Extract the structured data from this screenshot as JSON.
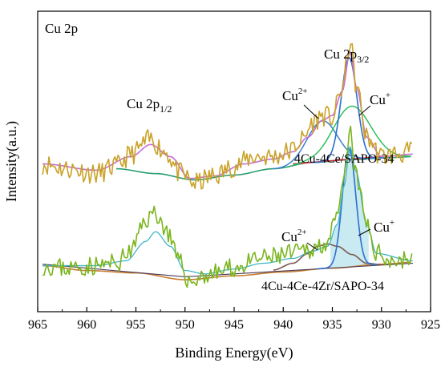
{
  "chart_data": {
    "type": "line",
    "panel_label": "Cu 2p",
    "xlabel": "Binding Energy(eV)",
    "ylabel": "Intensity(a.u.)",
    "xlim": [
      965,
      925
    ],
    "x_reversed": true,
    "x_ticks": [
      965,
      960,
      955,
      950,
      945,
      940,
      935,
      930,
      925
    ],
    "y_ticks_shown": false,
    "colors": {
      "raw_top": "#c9a227",
      "raw_bottom": "#7ab51d",
      "envelope": "#c86dd7",
      "cu2p32_peak": "#2c6fcd",
      "cu_plus_peak": "#2fbf5f",
      "cu2plus_peak": "#3a7fd0",
      "background": "#d7263d",
      "baseline": "#c77c2e",
      "satellite_fill": "#9ed8e8",
      "bottom_cu2plus": "#7a5a50"
    },
    "annotations": {
      "cu2p32": "Cu 2p3/2",
      "cu2p32_main": "Cu 2p",
      "cu2p32_sub": "3/2",
      "cu2p12_main": "Cu 2p",
      "cu2p12_sub": "1/2",
      "cu2plus_main": "Cu",
      "cu2plus_sup": "2+",
      "cuplus_main": "Cu",
      "cuplus_sup": "+"
    },
    "series": [
      {
        "name": "4Cu-4Ce/SAPO-34",
        "noise_seed": 11,
        "noise_amp": 0.22,
        "raw_points": [
          [
            964.5,
            3.05
          ],
          [
            962.0,
            2.95
          ],
          [
            959.0,
            2.85
          ],
          [
            957.0,
            3.0
          ],
          [
            955.5,
            3.25
          ],
          [
            953.5,
            3.55
          ],
          [
            952.0,
            3.3
          ],
          [
            950.5,
            2.85
          ],
          [
            949.0,
            2.65
          ],
          [
            947.0,
            2.8
          ],
          [
            945.0,
            3.0
          ],
          [
            943.0,
            3.2
          ],
          [
            941.0,
            3.2
          ],
          [
            939.5,
            3.3
          ],
          [
            938.0,
            3.55
          ],
          [
            937.0,
            3.9
          ],
          [
            936.0,
            4.05
          ],
          [
            935.0,
            4.0
          ],
          [
            934.0,
            4.6
          ],
          [
            933.2,
            5.55
          ],
          [
            932.5,
            4.6
          ],
          [
            931.5,
            3.6
          ],
          [
            930.0,
            3.2
          ],
          [
            928.5,
            3.25
          ],
          [
            926.8,
            3.3
          ]
        ],
        "envelope_points": [
          [
            964.5,
            3.05
          ],
          [
            959.0,
            2.92
          ],
          [
            955.5,
            3.2
          ],
          [
            953.5,
            3.45
          ],
          [
            951.5,
            3.2
          ],
          [
            949.5,
            2.75
          ],
          [
            947.0,
            2.8
          ],
          [
            944.0,
            3.05
          ],
          [
            941.0,
            3.15
          ],
          [
            939.0,
            3.3
          ],
          [
            937.5,
            3.6
          ],
          [
            936.0,
            3.95
          ],
          [
            935.0,
            4.05
          ],
          [
            934.0,
            4.55
          ],
          [
            933.2,
            5.35
          ],
          [
            932.5,
            4.6
          ],
          [
            931.5,
            3.6
          ],
          [
            930.0,
            3.2
          ],
          [
            926.8,
            3.25
          ]
        ],
        "baseline_points": [
          [
            957.0,
            2.95
          ],
          [
            953.0,
            2.85
          ],
          [
            949.0,
            2.72
          ],
          [
            945.0,
            2.82
          ],
          [
            941.0,
            2.95
          ],
          [
            937.0,
            3.08
          ],
          [
            933.0,
            3.14
          ],
          [
            929.0,
            3.18
          ],
          [
            926.8,
            3.2
          ]
        ],
        "background_points": [
          [
            939.0,
            3.05
          ],
          [
            930.0,
            3.2
          ]
        ],
        "cu2p32_peak": {
          "center": 933.3,
          "fwhm": 1.9,
          "height": 2.1
        },
        "cu_plus_peak": {
          "center": 933.0,
          "fwhm": 4.5,
          "height": 1.1
        },
        "cu2plus_peak": {
          "center": 936.0,
          "fwhm": 3.5,
          "height": 0.85
        },
        "label": "4Cu-4Ce/SAPO-34"
      },
      {
        "name": "4Cu-4Ce-4Zr/SAPO-34",
        "noise_seed": 23,
        "noise_amp": 0.2,
        "raw_points": [
          [
            964.5,
            0.95
          ],
          [
            962.0,
            0.9
          ],
          [
            959.0,
            0.95
          ],
          [
            957.0,
            1.0
          ],
          [
            955.5,
            1.25
          ],
          [
            954.0,
            1.9
          ],
          [
            953.0,
            2.05
          ],
          [
            952.0,
            1.7
          ],
          [
            950.5,
            1.0
          ],
          [
            949.5,
            0.6
          ],
          [
            948.0,
            0.75
          ],
          [
            945.0,
            0.9
          ],
          [
            942.0,
            1.1
          ],
          [
            939.0,
            1.2
          ],
          [
            937.0,
            1.3
          ],
          [
            935.5,
            1.45
          ],
          [
            934.5,
            1.9
          ],
          [
            933.8,
            2.7
          ],
          [
            933.2,
            3.7
          ],
          [
            932.6,
            2.8
          ],
          [
            931.5,
            1.8
          ],
          [
            930.5,
            1.2
          ],
          [
            928.5,
            1.05
          ],
          [
            926.8,
            1.1
          ]
        ],
        "envelope_points": [
          [
            964.5,
            0.95
          ],
          [
            959.0,
            0.95
          ],
          [
            956.0,
            1.05
          ],
          [
            954.0,
            1.45
          ],
          [
            953.0,
            1.65
          ],
          [
            951.5,
            1.35
          ],
          [
            950.0,
            0.85
          ],
          [
            948.0,
            0.78
          ],
          [
            945.0,
            0.88
          ],
          [
            942.0,
            1.0
          ],
          [
            939.0,
            1.1
          ],
          [
            937.0,
            1.25
          ],
          [
            935.5,
            1.35
          ],
          [
            934.5,
            1.8
          ],
          [
            933.8,
            2.6
          ],
          [
            933.2,
            3.4
          ],
          [
            932.6,
            2.9
          ],
          [
            931.5,
            1.8
          ],
          [
            930.5,
            1.2
          ],
          [
            926.8,
            1.05
          ]
        ],
        "baseline_points": [
          [
            964.5,
            0.95
          ],
          [
            960.0,
            0.85
          ],
          [
            955.0,
            0.8
          ],
          [
            950.0,
            0.66
          ],
          [
            945.0,
            0.74
          ],
          [
            940.0,
            0.82
          ],
          [
            935.0,
            0.9
          ],
          [
            930.0,
            0.98
          ],
          [
            926.8,
            1.02
          ]
        ],
        "cu2plus_points": [
          [
            941.0,
            0.86
          ],
          [
            939.0,
            1.0
          ],
          [
            937.5,
            1.2
          ],
          [
            936.5,
            1.35
          ],
          [
            935.5,
            1.4
          ],
          [
            934.5,
            1.35
          ],
          [
            933.0,
            1.18
          ],
          [
            931.5,
            1.0
          ],
          [
            930.0,
            0.97
          ]
        ],
        "cu2p32_peak": {
          "center": 933.3,
          "fwhm": 1.6,
          "height": 2.45
        },
        "satellite_peak": {
          "center": 953.2,
          "fwhm": 2.4,
          "height": 0.0
        },
        "label": "4Cu-4Ce-4Zr/SAPO-34"
      }
    ]
  }
}
